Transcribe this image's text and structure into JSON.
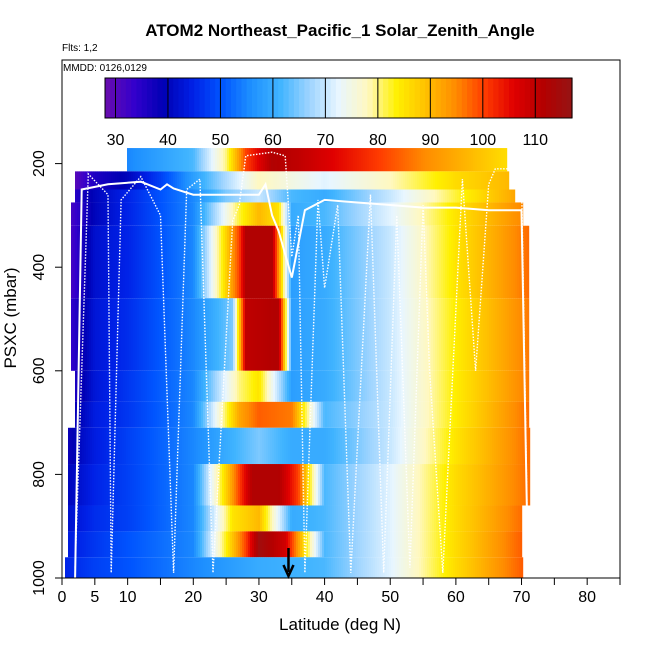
{
  "chart_data": {
    "type": "heatmap",
    "title": "ATOM2 Northeast_Pacific_1 Solar_Zenith_Angle",
    "flights_note": "Flts: 1,2",
    "dates_note": "MMDD: 0126,0129",
    "xlabel": "Latitude (deg N)",
    "ylabel": "PSXC (mbar)",
    "xlim": [
      0,
      85
    ],
    "ylim": [
      1000,
      0
    ],
    "x_ticks": [
      0,
      5,
      10,
      20,
      30,
      40,
      50,
      60,
      70,
      80
    ],
    "x_tick_labels": [
      "0",
      "5",
      "10",
      "20",
      "30",
      "40",
      "50",
      "60",
      "70",
      "80"
    ],
    "x_minor_ticks": [
      15,
      25,
      35,
      45,
      55,
      65,
      75,
      85
    ],
    "y_ticks": [
      200,
      400,
      600,
      800,
      1000
    ],
    "y_tick_labels": [
      "200",
      "400",
      "600",
      "800",
      "1000"
    ],
    "colorbar": {
      "range": [
        28,
        117
      ],
      "ticks": [
        30,
        40,
        50,
        60,
        70,
        80,
        90,
        100,
        110
      ],
      "tick_labels": [
        "30",
        "40",
        "50",
        "60",
        "70",
        "80",
        "90",
        "100",
        "110"
      ],
      "colors": [
        "#6a0dad",
        "#3300cc",
        "#0000b4",
        "#0020e6",
        "#0055ff",
        "#1e90ff",
        "#40b4ff",
        "#9ed4ff",
        "#e8f6ff",
        "#fff8c0",
        "#fff000",
        "#ffc000",
        "#ff8c00",
        "#ff3c00",
        "#e00000",
        "#b40000",
        "#961414"
      ]
    },
    "marker_latitude": 34.5,
    "layers": [
      {
        "p_top": 170,
        "p_bot": 215,
        "lat": [
          10,
          20,
          25,
          28,
          32,
          36,
          45,
          55,
          62,
          67.5
        ],
        "sza": [
          55,
          62,
          80,
          100,
          112,
          110,
          103,
          95,
          90,
          86
        ]
      },
      {
        "p_top": 215,
        "p_bot": 250,
        "lat": [
          2,
          5,
          10,
          15,
          20,
          25,
          30,
          35,
          40,
          50,
          60,
          68
        ],
        "sza": [
          30,
          36,
          40,
          48,
          58,
          68,
          78,
          75,
          72,
          78,
          86,
          90
        ]
      },
      {
        "p_top": 250,
        "p_bot": 275,
        "lat": [
          2,
          5,
          10,
          20,
          25,
          30,
          35,
          40,
          50,
          60,
          69
        ],
        "sza": [
          35,
          40,
          45,
          55,
          65,
          70,
          62,
          60,
          70,
          82,
          92
        ]
      },
      {
        "p_top": 275,
        "p_bot": 320,
        "lat": [
          1.5,
          5,
          10,
          20,
          27,
          30,
          33,
          35,
          40,
          50,
          60,
          70
        ],
        "sza": [
          32,
          40,
          45,
          55,
          82,
          90,
          85,
          60,
          62,
          72,
          85,
          95
        ]
      },
      {
        "p_top": 320,
        "p_bot": 460,
        "lat": [
          1.5,
          5,
          10,
          20,
          27,
          28,
          32,
          35,
          40,
          50,
          60,
          71
        ],
        "sza": [
          32,
          42,
          45,
          55,
          100,
          112,
          112,
          58,
          60,
          70,
          85,
          97
        ]
      },
      {
        "p_top": 460,
        "p_bot": 600,
        "lat": [
          1.5,
          5,
          10,
          20,
          26,
          28,
          33,
          35,
          40,
          50,
          60,
          71
        ],
        "sza": [
          34,
          43,
          46,
          55,
          65,
          110,
          112,
          58,
          60,
          70,
          84,
          96
        ]
      },
      {
        "p_top": 600,
        "p_bot": 660,
        "lat": [
          2,
          5,
          10,
          20,
          27,
          30,
          35,
          40,
          50,
          60,
          71
        ],
        "sza": [
          36,
          43,
          47,
          55,
          80,
          85,
          58,
          60,
          70,
          84,
          96
        ]
      },
      {
        "p_top": 660,
        "p_bot": 710,
        "lat": [
          2,
          5,
          10,
          20,
          27,
          30,
          35,
          40,
          50,
          60,
          71
        ],
        "sza": [
          38,
          44,
          47,
          55,
          92,
          98,
          96,
          62,
          70,
          84,
          97
        ]
      },
      {
        "p_top": 710,
        "p_bot": 780,
        "lat": [
          1,
          5,
          10,
          20,
          27,
          30,
          35,
          40,
          50,
          60,
          71
        ],
        "sza": [
          38,
          44,
          48,
          55,
          62,
          65,
          60,
          60,
          70,
          85,
          97
        ]
      },
      {
        "p_top": 780,
        "p_bot": 860,
        "lat": [
          1,
          5,
          10,
          20,
          27,
          29,
          33,
          36,
          40,
          50,
          60,
          71
        ],
        "sza": [
          40,
          45,
          48,
          55,
          100,
          112,
          112,
          100,
          62,
          72,
          86,
          97
        ]
      },
      {
        "p_top": 860,
        "p_bot": 910,
        "lat": [
          1,
          5,
          10,
          20,
          26,
          30,
          35,
          40,
          50,
          60,
          70
        ],
        "sza": [
          42,
          46,
          48,
          55,
          85,
          90,
          60,
          62,
          72,
          86,
          97
        ]
      },
      {
        "p_top": 910,
        "p_bot": 960,
        "lat": [
          1,
          5,
          10,
          20,
          28,
          30,
          34,
          40,
          50,
          60,
          70
        ],
        "sza": [
          44,
          47,
          50,
          55,
          100,
          115,
          108,
          62,
          72,
          86,
          98
        ]
      },
      {
        "p_top": 960,
        "p_bot": 1000,
        "lat": [
          0.5,
          5,
          10,
          20,
          30,
          40,
          50,
          60,
          70
        ],
        "sza": [
          45,
          48,
          50,
          55,
          60,
          62,
          72,
          86,
          98
        ]
      }
    ],
    "flight_track_solid": [
      [
        2,
        1000
      ],
      [
        3,
        250
      ],
      [
        7,
        240
      ],
      [
        12,
        235
      ],
      [
        15,
        250
      ],
      [
        16,
        240
      ],
      [
        17,
        248
      ],
      [
        20,
        260
      ],
      [
        30,
        260
      ],
      [
        31,
        240
      ],
      [
        32,
        300
      ],
      [
        33,
        330
      ],
      [
        35,
        420
      ],
      [
        37,
        290
      ],
      [
        40,
        270
      ],
      [
        45,
        275
      ],
      [
        50,
        280
      ],
      [
        55,
        285
      ],
      [
        60,
        285
      ],
      [
        65,
        290
      ],
      [
        70,
        290
      ],
      [
        71,
        1000
      ]
    ],
    "flight_track_dotted": [
      [
        2,
        980
      ],
      [
        4,
        220
      ],
      [
        7,
        260
      ],
      [
        7.5,
        990
      ],
      [
        9,
        270
      ],
      [
        12,
        225
      ],
      [
        15,
        300
      ],
      [
        17,
        990
      ],
      [
        19,
        250
      ],
      [
        21,
        230
      ],
      [
        23,
        990
      ],
      [
        26,
        310
      ],
      [
        27,
        280
      ],
      [
        28,
        185
      ],
      [
        32,
        178
      ],
      [
        34,
        185
      ],
      [
        35,
        380
      ],
      [
        36,
        300
      ],
      [
        37,
        990
      ],
      [
        39,
        270
      ],
      [
        40,
        440
      ],
      [
        42,
        280
      ],
      [
        44,
        990
      ],
      [
        47,
        260
      ],
      [
        49,
        990
      ],
      [
        51,
        300
      ],
      [
        53,
        980
      ],
      [
        55,
        280
      ],
      [
        56,
        600
      ],
      [
        58,
        990
      ],
      [
        61,
        230
      ],
      [
        63,
        600
      ],
      [
        65,
        240
      ],
      [
        66,
        210
      ],
      [
        68,
        210
      ],
      [
        70,
        230
      ],
      [
        71,
        990
      ]
    ]
  }
}
